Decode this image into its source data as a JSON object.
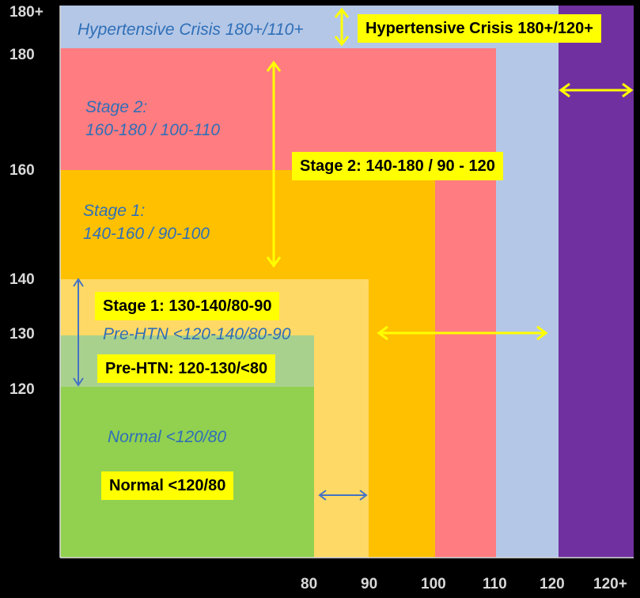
{
  "colors": {
    "background": "#000000",
    "crisis_old": "#b4c7e7",
    "crisis_new": "#7030a0",
    "stage2": "#ff7c80",
    "stage1_old": "#ffc000",
    "stage1_new": "#ffd966",
    "prehtn": "#a9d18e",
    "normal": "#92d050",
    "highlight": "#ffff00",
    "old_text": "#2f6fb7",
    "arrow_blue": "#4472c4",
    "axis_text": "#d9d9d9"
  },
  "y_ticks": [
    "180+",
    "180",
    "160",
    "140",
    "130",
    "120"
  ],
  "x_ticks": [
    "80",
    "90",
    "100",
    "110",
    "120",
    "120+"
  ],
  "old_guidelines": {
    "crisis": "Hypertensive Crisis 180+/110+",
    "stage2_line1": "Stage 2:",
    "stage2_line2": "160-180 / 100-110",
    "stage1_line1": "Stage 1:",
    "stage1_line2": "140-160 / 90-100",
    "prehtn": "Pre-HTN <120-140/80-90",
    "normal": "Normal <120/80"
  },
  "new_guidelines": {
    "crisis": "Hypertensive Crisis 180+/120+",
    "stage2": "Stage 2: 140-180 / 90 - 120",
    "stage1": "Stage 1: 130-140/80-90",
    "prehtn": "Pre-HTN: 120-130/<80",
    "normal": "Normal <120/80"
  }
}
